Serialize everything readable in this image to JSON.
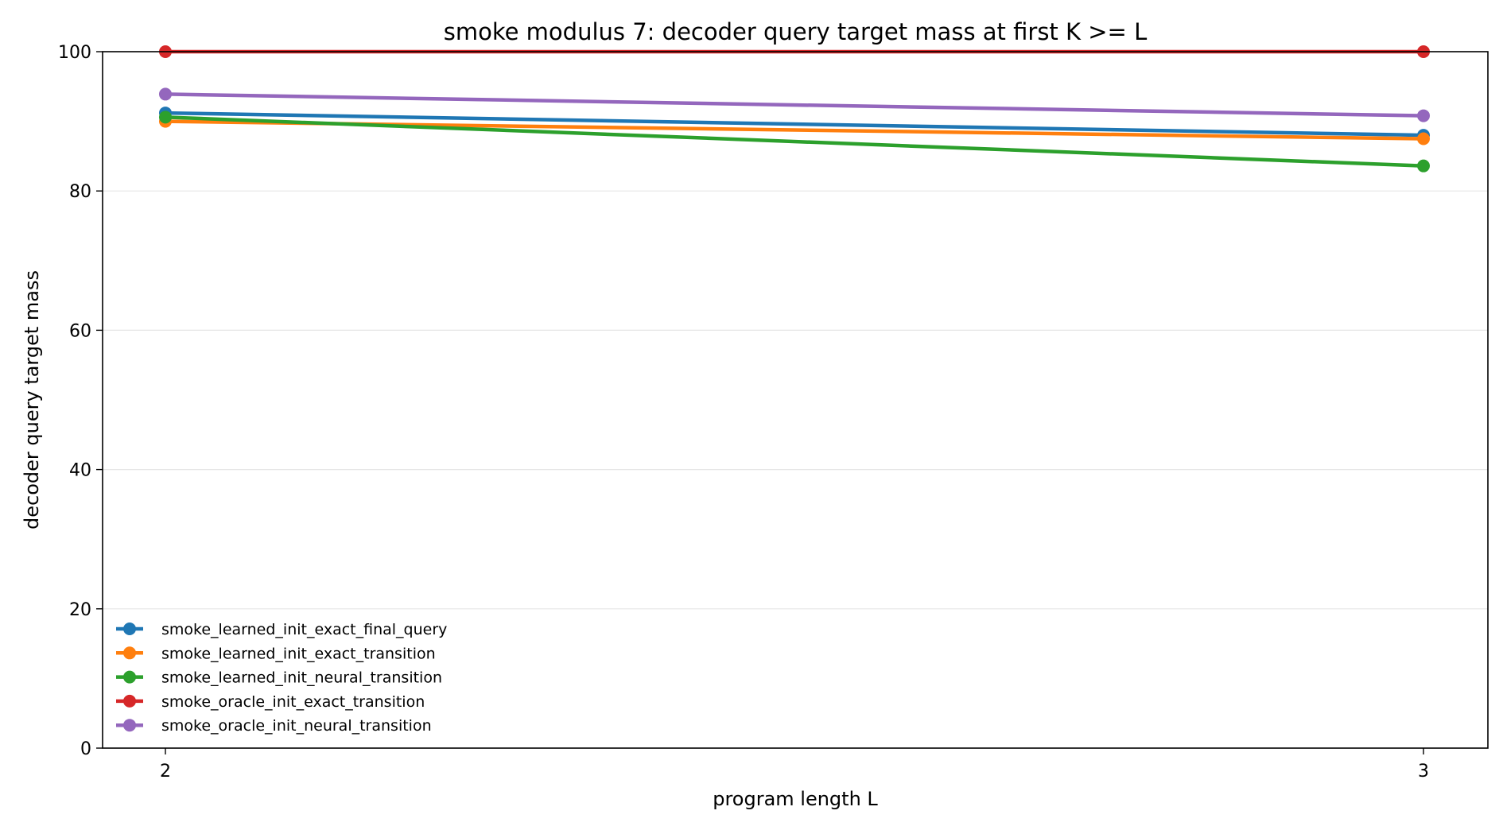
{
  "chart_data": {
    "type": "line",
    "title": "smoke modulus 7: decoder query target mass at first K >= L",
    "xlabel": "program length L",
    "ylabel": "decoder query target mass",
    "x": [
      2,
      3
    ],
    "x_tick_labels": [
      "2",
      "3"
    ],
    "ylim": [
      0,
      100
    ],
    "y_ticks": [
      0,
      20,
      40,
      60,
      80,
      100
    ],
    "y_tick_labels": [
      "0",
      "20",
      "40",
      "60",
      "80",
      "100"
    ],
    "grid": "horizontal",
    "legend_position": "lower-left",
    "series": [
      {
        "name": "smoke_learned_init_exact_final_query",
        "color": "#1f77b4",
        "values": [
          91.2,
          88.0
        ]
      },
      {
        "name": "smoke_learned_init_exact_transition",
        "color": "#ff7f0e",
        "values": [
          90.0,
          87.5
        ]
      },
      {
        "name": "smoke_learned_init_neural_transition",
        "color": "#2ca02c",
        "values": [
          90.6,
          83.6
        ]
      },
      {
        "name": "smoke_oracle_init_exact_transition",
        "color": "#d62728",
        "values": [
          100.0,
          100.0
        ]
      },
      {
        "name": "smoke_oracle_init_neural_transition",
        "color": "#9467bd",
        "values": [
          93.9,
          90.8
        ]
      }
    ]
  }
}
